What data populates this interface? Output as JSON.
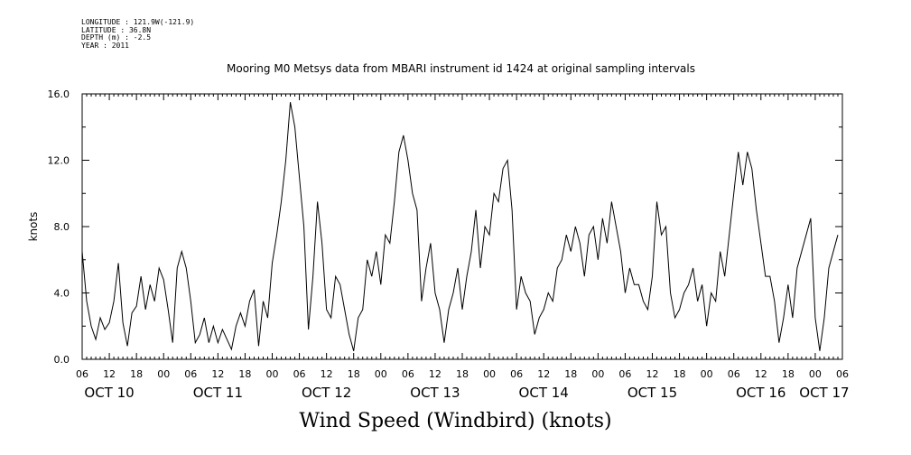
{
  "metadata": {
    "longitude": "LONGITUDE : 121.9W(-121.9)",
    "latitude": "LATITUDE : 36.8N",
    "depth": "DEPTH (m) : -2.5",
    "year": "YEAR : 2011"
  },
  "chart_data": {
    "type": "line",
    "title": "Mooring M0 Metsys data from MBARI instrument id 1424 at original sampling intervals",
    "xlabel": "Wind Speed (Windbird) (knots)",
    "ylabel": "knots",
    "ylim": [
      0,
      16
    ],
    "yticks": [
      "0.0",
      "4.0",
      "8.0",
      "12.0",
      "16.0"
    ],
    "xlim_hours": [
      0,
      168
    ],
    "x_unit": "hours since Oct 10 06:00, 2011",
    "hour_tick_labels": [
      "06",
      "12",
      "18",
      "00",
      "06",
      "12",
      "18",
      "00",
      "06",
      "12",
      "18",
      "00",
      "06",
      "12",
      "18",
      "00",
      "06",
      "12",
      "18",
      "00",
      "06",
      "12",
      "18",
      "00",
      "06",
      "12",
      "18",
      "00",
      "06"
    ],
    "day_labels": [
      "OCT 10",
      "OCT 11",
      "OCT 12",
      "OCT 13",
      "OCT 14",
      "OCT 15",
      "OCT 16",
      "OCT 17"
    ],
    "grid": false,
    "series": [
      {
        "name": "Wind Speed (Windbird)",
        "x": [
          0,
          1,
          2,
          3,
          4,
          5,
          6,
          7,
          8,
          9,
          10,
          11,
          12,
          13,
          14,
          15,
          16,
          17,
          18,
          19,
          20,
          21,
          22,
          23,
          24,
          25,
          26,
          27,
          28,
          29,
          30,
          31,
          32,
          33,
          34,
          35,
          36,
          37,
          38,
          39,
          40,
          41,
          42,
          43,
          44,
          45,
          46,
          47,
          48,
          49,
          50,
          51,
          52,
          53,
          54,
          55,
          56,
          57,
          58,
          59,
          60,
          61,
          62,
          63,
          64,
          65,
          66,
          67,
          68,
          69,
          70,
          71,
          72,
          73,
          74,
          75,
          76,
          77,
          78,
          79,
          80,
          81,
          82,
          83,
          84,
          85,
          86,
          87,
          88,
          89,
          90,
          91,
          92,
          93,
          94,
          95,
          96,
          97,
          98,
          99,
          100,
          101,
          102,
          103,
          104,
          105,
          106,
          107,
          108,
          109,
          110,
          111,
          112,
          113,
          114,
          115,
          116,
          117,
          118,
          119,
          120,
          121,
          122,
          123,
          124,
          125,
          126,
          127,
          128,
          129,
          130,
          131,
          132,
          133,
          134,
          135,
          136,
          137,
          138,
          139,
          140,
          141,
          142,
          143,
          144,
          145,
          146,
          147,
          148,
          149,
          150,
          151,
          152,
          153,
          154,
          155,
          156,
          157,
          158,
          159,
          160,
          161,
          162,
          163,
          164,
          165,
          166,
          167
        ],
        "values": [
          6.5,
          3.5,
          2.0,
          1.2,
          2.5,
          1.8,
          2.2,
          3.5,
          5.8,
          2.2,
          0.8,
          2.8,
          3.2,
          5.0,
          3.0,
          4.5,
          3.5,
          5.5,
          4.8,
          3.0,
          1.0,
          5.5,
          6.5,
          5.5,
          3.5,
          1.0,
          1.5,
          2.5,
          1.0,
          2.0,
          1.0,
          1.8,
          1.2,
          0.6,
          2.0,
          2.8,
          2.0,
          3.5,
          4.2,
          0.8,
          3.5,
          2.5,
          5.8,
          7.5,
          9.5,
          12.0,
          15.5,
          14.0,
          11.0,
          8.0,
          1.8,
          5.0,
          9.5,
          7.0,
          3.0,
          2.5,
          5.0,
          4.5,
          3.0,
          1.5,
          0.5,
          2.5,
          3.0,
          6.0,
          5.0,
          6.5,
          4.5,
          7.5,
          7.0,
          9.5,
          12.5,
          13.5,
          12.0,
          10.0,
          9.0,
          3.5,
          5.5,
          7.0,
          4.0,
          3.0,
          1.0,
          3.0,
          4.0,
          5.5,
          3.0,
          5.0,
          6.5,
          9.0,
          5.5,
          8.0,
          7.5,
          10.0,
          9.5,
          11.5,
          12.0,
          9.0,
          3.0,
          5.0,
          4.0,
          3.5,
          1.5,
          2.5,
          3.0,
          4.0,
          3.5,
          5.5,
          6.0,
          7.5,
          6.5,
          8.0,
          7.0,
          5.0,
          7.5,
          8.0,
          6.0,
          8.5,
          7.0,
          9.5,
          8.0,
          6.5,
          4.0,
          5.5,
          4.5,
          4.5,
          3.5,
          3.0,
          5.0,
          9.5,
          7.5,
          8.0,
          4.0,
          2.5,
          3.0,
          4.0,
          4.5,
          5.5,
          3.5,
          4.5,
          2.0,
          4.0,
          3.5,
          6.5,
          5.0,
          7.5,
          10.0,
          12.5,
          10.5,
          12.5,
          11.5,
          9.0,
          7.0,
          5.0,
          5.0,
          3.5,
          1.0,
          2.5,
          4.5,
          2.5,
          5.5,
          6.5,
          7.5,
          8.5,
          2.5,
          0.5,
          2.5,
          5.5,
          6.5,
          7.5
        ]
      }
    ]
  }
}
